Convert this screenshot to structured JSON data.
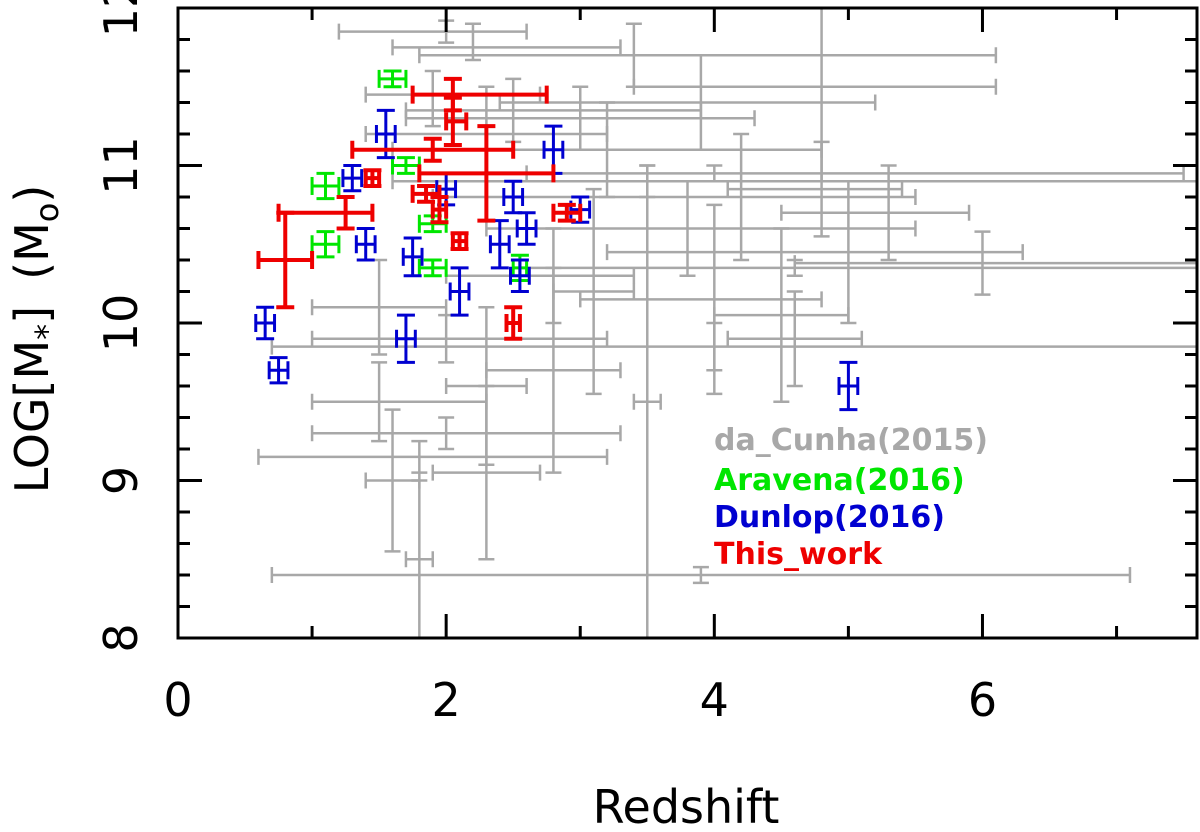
{
  "chart_data": {
    "type": "scatter",
    "title": "",
    "xlabel": "Redshift",
    "ylabel": "LOG[M",
    "ylabel_sub": "*",
    "ylabel_end": "]",
    "yunit_open": "(M",
    "yunit_sub": "o",
    "yunit_close": ")",
    "xlim": [
      0,
      7.6
    ],
    "ylim": [
      8,
      12
    ],
    "xticks": [
      0,
      2,
      4,
      6
    ],
    "yticks": [
      8,
      9,
      10,
      11,
      12
    ],
    "legend_position": "bottom-right",
    "series": [
      {
        "name": "da_Cunha(2015)",
        "color": "#a8a8a8",
        "points": [
          {
            "x": 2.0,
            "y": 11.85,
            "xerr": [
              0.8,
              0.6
            ],
            "yerr": [
              0.07,
              0.07
            ]
          },
          {
            "x": 2.2,
            "y": 11.75,
            "xerr": [
              0.6,
              1.1
            ],
            "yerr": [
              0.08,
              0.15
            ]
          },
          {
            "x": 3.4,
            "y": 11.7,
            "xerr": [
              1.6,
              2.7
            ],
            "yerr": [
              0.2,
              0.2
            ]
          },
          {
            "x": 4.8,
            "y": 11.5,
            "xerr": [
              1.4,
              1.3
            ],
            "yerr": [
              0.6,
              0.6
            ]
          },
          {
            "x": 3.0,
            "y": 11.3,
            "xerr": [
              1.3,
              1.3
            ],
            "yerr": [
              0.2,
              0.2
            ]
          },
          {
            "x": 2.5,
            "y": 11.35,
            "xerr": [
              0.8,
              1.4
            ],
            "yerr": [
              0.2,
              0.2
            ]
          },
          {
            "x": 1.9,
            "y": 11.45,
            "xerr": [
              0.5,
              0.8
            ],
            "yerr": [
              0.2,
              0.15
            ]
          },
          {
            "x": 3.9,
            "y": 11.4,
            "xerr": [
              1.5,
              1.3
            ],
            "yerr": [
              0.3,
              0.3
            ]
          },
          {
            "x": 2.3,
            "y": 11.2,
            "xerr": [
              0.9,
              0.9
            ],
            "yerr": [
              0.3,
              0.3
            ]
          },
          {
            "x": 3.2,
            "y": 11.1,
            "xerr": [
              1.6,
              1.6
            ],
            "yerr": [
              0.3,
              0.3
            ]
          },
          {
            "x": 4.0,
            "y": 10.95,
            "xerr": [
              1.4,
              3.5
            ],
            "yerr": [
              0.05,
              0.05
            ]
          },
          {
            "x": 3.5,
            "y": 10.9,
            "xerr": [
              1.9,
              4.1
            ],
            "yerr": [
              0.1,
              0.1
            ]
          },
          {
            "x": 4.8,
            "y": 10.85,
            "xerr": [
              0.7,
              0.6
            ],
            "yerr": [
              0.3,
              0.3
            ]
          },
          {
            "x": 4.2,
            "y": 10.8,
            "xerr": [
              2.3,
              1.3
            ],
            "yerr": [
              0.4,
              0.4
            ]
          },
          {
            "x": 5.3,
            "y": 10.7,
            "xerr": [
              0.8,
              0.6
            ],
            "yerr": [
              0.3,
              0.3
            ]
          },
          {
            "x": 3.8,
            "y": 10.6,
            "xerr": [
              1.5,
              1.7
            ],
            "yerr": [
              0.3,
              0.3
            ]
          },
          {
            "x": 5.0,
            "y": 10.45,
            "xerr": [
              1.8,
              1.3
            ],
            "yerr": [
              0.45,
              0.45
            ]
          },
          {
            "x": 4.6,
            "y": 10.35,
            "xerr": [
              2.0,
              3.0
            ],
            "yerr": [
              0.05,
              0.05
            ]
          },
          {
            "x": 6.0,
            "y": 10.38,
            "xerr": [
              1.4,
              1.6
            ],
            "yerr": [
              0.2,
              0.2
            ]
          },
          {
            "x": 4.0,
            "y": 10.15,
            "xerr": [
              1.0,
              0.8
            ],
            "yerr": [
              0.6,
              0.6
            ]
          },
          {
            "x": 4.5,
            "y": 10.05,
            "xerr": [
              0.5,
              0.5
            ],
            "yerr": [
              0.55,
              0.55
            ]
          },
          {
            "x": 4.6,
            "y": 9.9,
            "xerr": [
              0.5,
              0.5
            ],
            "yerr": [
              0.3,
              0.3
            ]
          },
          {
            "x": 2.8,
            "y": 10.3,
            "xerr": [
              0.8,
              0.6
            ],
            "yerr": [
              0.3,
              0.3
            ]
          },
          {
            "x": 1.5,
            "y": 10.1,
            "xerr": [
              0.5,
              0.5
            ],
            "yerr": [
              0.3,
              0.3
            ]
          },
          {
            "x": 2.0,
            "y": 9.9,
            "xerr": [
              1.0,
              1.2
            ],
            "yerr": [
              0.15,
              0.15
            ]
          },
          {
            "x": 3.1,
            "y": 10.2,
            "xerr": [
              0.3,
              0.3
            ],
            "yerr": [
              0.65,
              0.65
            ]
          },
          {
            "x": 2.8,
            "y": 9.7,
            "xerr": [
              0.5,
              0.5
            ],
            "yerr": [
              0.65,
              0.65
            ]
          },
          {
            "x": 4.0,
            "y": 9.85,
            "xerr": [
              3.3,
              3.6
            ],
            "yerr": [
              0.15,
              0.15
            ]
          },
          {
            "x": 1.5,
            "y": 9.5,
            "xerr": [
              0.5,
              0.8
            ],
            "yerr": [
              0.25,
              0.25
            ]
          },
          {
            "x": 2.0,
            "y": 9.3,
            "xerr": [
              1.0,
              1.3
            ],
            "yerr": [
              0.1,
              0.1
            ]
          },
          {
            "x": 1.8,
            "y": 9.15,
            "xerr": [
              1.2,
              1.4
            ],
            "yerr": [
              0.1,
              0.1
            ]
          },
          {
            "x": 2.3,
            "y": 9.6,
            "xerr": [
              0.3,
              0.3
            ],
            "yerr": [
              0.5,
              0.5
            ]
          },
          {
            "x": 2.3,
            "y": 9.05,
            "xerr": [
              0.4,
              0.4
            ],
            "yerr": [
              0.55,
              0.55
            ]
          },
          {
            "x": 1.6,
            "y": 9.0,
            "xerr": [
              0.2,
              0.2
            ],
            "yerr": [
              0.45,
              0.45
            ]
          },
          {
            "x": 1.8,
            "y": 8.5,
            "xerr": [
              0.1,
              0.1
            ],
            "yerr": [
              0.5,
              0.5
            ]
          },
          {
            "x": 3.5,
            "y": 9.5,
            "xerr": [
              0.1,
              0.1
            ],
            "yerr": [
              1.5,
              1.5
            ]
          },
          {
            "x": 3.9,
            "y": 8.4,
            "xerr": [
              3.2,
              3.2
            ],
            "yerr": [
              0.05,
              0.05
            ]
          }
        ]
      },
      {
        "name": "Aravena(2016)",
        "color": "#00e600",
        "points": [
          {
            "x": 1.6,
            "y": 11.55,
            "xerr": [
              0.1,
              0.1
            ],
            "yerr": [
              0.05,
              0.05
            ]
          },
          {
            "x": 1.7,
            "y": 11.0,
            "xerr": [
              0.1,
              0.1
            ],
            "yerr": [
              0.05,
              0.05
            ]
          },
          {
            "x": 1.1,
            "y": 10.87,
            "xerr": [
              0.1,
              0.1
            ],
            "yerr": [
              0.08,
              0.08
            ]
          },
          {
            "x": 1.9,
            "y": 10.63,
            "xerr": [
              0.1,
              0.1
            ],
            "yerr": [
              0.05,
              0.05
            ]
          },
          {
            "x": 1.1,
            "y": 10.5,
            "xerr": [
              0.1,
              0.1
            ],
            "yerr": [
              0.08,
              0.08
            ]
          },
          {
            "x": 1.9,
            "y": 10.35,
            "xerr": [
              0.1,
              0.1
            ],
            "yerr": [
              0.05,
              0.05
            ]
          },
          {
            "x": 2.55,
            "y": 10.35,
            "xerr": [
              0.05,
              0.05
            ],
            "yerr": [
              0.08,
              0.08
            ]
          }
        ]
      },
      {
        "name": "Dunlop(2016)",
        "color": "#0000d0",
        "points": [
          {
            "x": 1.55,
            "y": 11.2,
            "xerr": [
              0.07,
              0.07
            ],
            "yerr": [
              0.15,
              0.15
            ]
          },
          {
            "x": 2.8,
            "y": 11.1,
            "xerr": [
              0.07,
              0.07
            ],
            "yerr": [
              0.15,
              0.15
            ]
          },
          {
            "x": 1.3,
            "y": 10.92,
            "xerr": [
              0.07,
              0.07
            ],
            "yerr": [
              0.08,
              0.08
            ]
          },
          {
            "x": 2.0,
            "y": 10.85,
            "xerr": [
              0.07,
              0.07
            ],
            "yerr": [
              0.1,
              0.1
            ]
          },
          {
            "x": 2.5,
            "y": 10.8,
            "xerr": [
              0.07,
              0.07
            ],
            "yerr": [
              0.1,
              0.1
            ]
          },
          {
            "x": 3.0,
            "y": 10.72,
            "xerr": [
              0.07,
              0.07
            ],
            "yerr": [
              0.08,
              0.08
            ]
          },
          {
            "x": 2.6,
            "y": 10.6,
            "xerr": [
              0.07,
              0.07
            ],
            "yerr": [
              0.1,
              0.1
            ]
          },
          {
            "x": 1.4,
            "y": 10.5,
            "xerr": [
              0.07,
              0.07
            ],
            "yerr": [
              0.1,
              0.1
            ]
          },
          {
            "x": 2.4,
            "y": 10.5,
            "xerr": [
              0.07,
              0.07
            ],
            "yerr": [
              0.15,
              0.15
            ]
          },
          {
            "x": 1.75,
            "y": 10.42,
            "xerr": [
              0.07,
              0.07
            ],
            "yerr": [
              0.12,
              0.12
            ]
          },
          {
            "x": 2.55,
            "y": 10.3,
            "xerr": [
              0.07,
              0.07
            ],
            "yerr": [
              0.1,
              0.1
            ]
          },
          {
            "x": 2.1,
            "y": 10.2,
            "xerr": [
              0.07,
              0.07
            ],
            "yerr": [
              0.15,
              0.15
            ]
          },
          {
            "x": 0.65,
            "y": 10.0,
            "xerr": [
              0.07,
              0.07
            ],
            "yerr": [
              0.1,
              0.1
            ]
          },
          {
            "x": 1.7,
            "y": 9.9,
            "xerr": [
              0.07,
              0.07
            ],
            "yerr": [
              0.15,
              0.15
            ]
          },
          {
            "x": 0.75,
            "y": 9.7,
            "xerr": [
              0.07,
              0.07
            ],
            "yerr": [
              0.08,
              0.08
            ]
          },
          {
            "x": 5.0,
            "y": 9.6,
            "xerr": [
              0.07,
              0.07
            ],
            "yerr": [
              0.15,
              0.15
            ]
          }
        ]
      },
      {
        "name": "This_work",
        "color": "#ee0000",
        "points": [
          {
            "x": 2.05,
            "y": 11.45,
            "xerr": [
              0.3,
              0.7
            ],
            "yerr": [
              0.1,
              0.1
            ]
          },
          {
            "x": 2.05,
            "y": 11.28,
            "xerr": [
              0.05,
              0.1
            ],
            "yerr": [
              0.15,
              0.15
            ]
          },
          {
            "x": 1.9,
            "y": 11.1,
            "xerr": [
              0.6,
              0.6
            ],
            "yerr": [
              0.07,
              0.07
            ]
          },
          {
            "x": 2.3,
            "y": 10.95,
            "xerr": [
              0.5,
              0.5
            ],
            "yerr": [
              0.3,
              0.3
            ]
          },
          {
            "x": 1.45,
            "y": 10.92,
            "xerr": [
              0.05,
              0.05
            ],
            "yerr": [
              0.05,
              0.05
            ]
          },
          {
            "x": 1.85,
            "y": 10.82,
            "xerr": [
              0.1,
              0.1
            ],
            "yerr": [
              0.05,
              0.05
            ]
          },
          {
            "x": 1.25,
            "y": 10.7,
            "xerr": [
              0.5,
              0.2
            ],
            "yerr": [
              0.1,
              0.1
            ]
          },
          {
            "x": 1.95,
            "y": 10.72,
            "xerr": [
              0.05,
              0.05
            ],
            "yerr": [
              0.08,
              0.08
            ]
          },
          {
            "x": 2.9,
            "y": 10.7,
            "xerr": [
              0.1,
              0.1
            ],
            "yerr": [
              0.05,
              0.05
            ]
          },
          {
            "x": 2.1,
            "y": 10.52,
            "xerr": [
              0.05,
              0.05
            ],
            "yerr": [
              0.05,
              0.05
            ]
          },
          {
            "x": 0.8,
            "y": 10.4,
            "xerr": [
              0.2,
              0.2
            ],
            "yerr": [
              0.3,
              0.3
            ]
          },
          {
            "x": 2.5,
            "y": 10.0,
            "xerr": [
              0.05,
              0.05
            ],
            "yerr": [
              0.1,
              0.1
            ]
          }
        ]
      }
    ]
  }
}
